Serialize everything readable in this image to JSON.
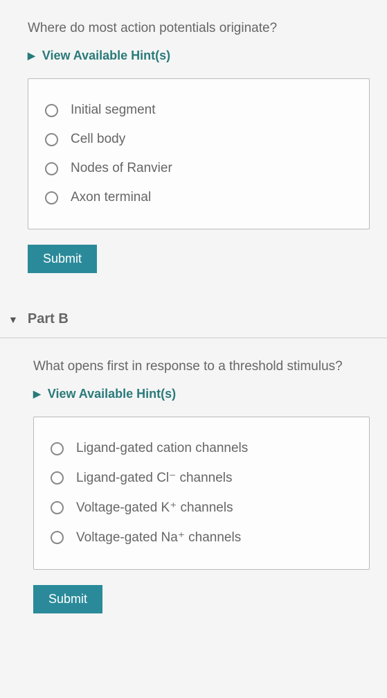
{
  "partA": {
    "question": "Where do most action potentials originate?",
    "hints_label": "View Available Hint(s)",
    "options": [
      "Initial segment",
      "Cell body",
      "Nodes of Ranvier",
      "Axon terminal"
    ],
    "submit_label": "Submit"
  },
  "partB": {
    "header": "Part B",
    "question": "What opens first in response to a threshold stimulus?",
    "hints_label": "View Available Hint(s)",
    "options": [
      "Ligand-gated cation channels",
      "Ligand-gated Cl⁻ channels",
      "Voltage-gated K⁺ channels",
      "Voltage-gated Na⁺ channels"
    ],
    "submit_label": "Submit"
  },
  "colors": {
    "accent": "#2a8a9a",
    "hint_text": "#2a7a7a",
    "body_text": "#666666",
    "border": "#bbbbbb",
    "background": "#f5f5f5"
  }
}
